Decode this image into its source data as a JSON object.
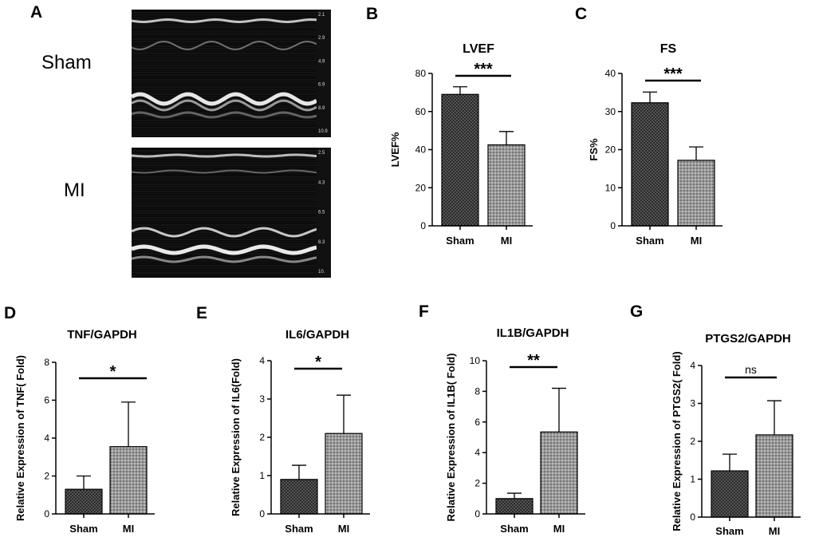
{
  "panels": {
    "A": "A",
    "B": "B",
    "C": "C",
    "D": "D",
    "E": "E",
    "F": "F",
    "G": "G"
  },
  "echo": {
    "sham_label": "Sham",
    "mi_label": "MI",
    "sham_scale": [
      "2.1",
      "2.9",
      "4.9",
      "6.9",
      "8.9",
      "10.9"
    ],
    "mi_scale": [
      "2.5",
      "4.3",
      "6.5",
      "8.3",
      "10."
    ]
  },
  "colors": {
    "bar_sham_fill": "#2a2a2a",
    "bar_mi_fill": "#9a9a9a",
    "axis": "#000000"
  },
  "chart_data": [
    {
      "id": "B",
      "type": "bar",
      "title": "LVEF",
      "ylabel": "LVEF%",
      "xlabel": "",
      "categories": [
        "Sham",
        "MI"
      ],
      "values": [
        69,
        42.5
      ],
      "errors": [
        4,
        7
      ],
      "ylim": [
        0,
        80
      ],
      "yticks": [
        "0",
        "20",
        "40",
        "60",
        "80"
      ],
      "significance": "***"
    },
    {
      "id": "C",
      "type": "bar",
      "title": "FS",
      "ylabel": "FS%",
      "xlabel": "",
      "categories": [
        "Sham",
        "MI"
      ],
      "values": [
        32.3,
        17.2
      ],
      "errors": [
        2.8,
        3.5
      ],
      "ylim": [
        0,
        40
      ],
      "yticks": [
        "0",
        "10",
        "20",
        "30",
        "40"
      ],
      "significance": "***"
    },
    {
      "id": "D",
      "type": "bar",
      "title": "TNF/GAPDH",
      "ylabel": "Relative Expression of TNF( Fold)",
      "xlabel": "",
      "categories": [
        "Sham",
        "MI"
      ],
      "values": [
        1.3,
        3.55
      ],
      "errors": [
        0.7,
        2.35
      ],
      "ylim": [
        0,
        8
      ],
      "yticks": [
        "0",
        "2",
        "4",
        "6",
        "8"
      ],
      "significance": "*"
    },
    {
      "id": "E",
      "type": "bar",
      "title": "IL6/GAPDH",
      "ylabel": "Relative Expression of IL6(Fold)",
      "xlabel": "",
      "categories": [
        "Sham",
        "MI"
      ],
      "values": [
        0.9,
        2.1
      ],
      "errors": [
        0.37,
        1.0
      ],
      "ylim": [
        0,
        4
      ],
      "yticks": [
        "0",
        "1",
        "2",
        "3",
        "4"
      ],
      "significance": "*"
    },
    {
      "id": "F",
      "type": "bar",
      "title": "IL1B/GAPDH",
      "ylabel": "Relative Expression of IL1B( Fold)",
      "xlabel": "",
      "categories": [
        "Sham",
        "MI"
      ],
      "values": [
        1.0,
        5.35
      ],
      "errors": [
        0.35,
        2.85
      ],
      "ylim": [
        0,
        10
      ],
      "yticks": [
        "0",
        "2",
        "4",
        "6",
        "8",
        "10"
      ],
      "significance": "**"
    },
    {
      "id": "G",
      "type": "bar",
      "title": "PTGS2/GAPDH",
      "ylabel": "Relative Expression of PTGS2( Fold)",
      "xlabel": "",
      "categories": [
        "Sham",
        "MI"
      ],
      "values": [
        1.22,
        2.17
      ],
      "errors": [
        0.44,
        0.9
      ],
      "ylim": [
        0,
        4
      ],
      "yticks": [
        "0",
        "1",
        "2",
        "3",
        "4"
      ],
      "significance": "ns"
    }
  ]
}
